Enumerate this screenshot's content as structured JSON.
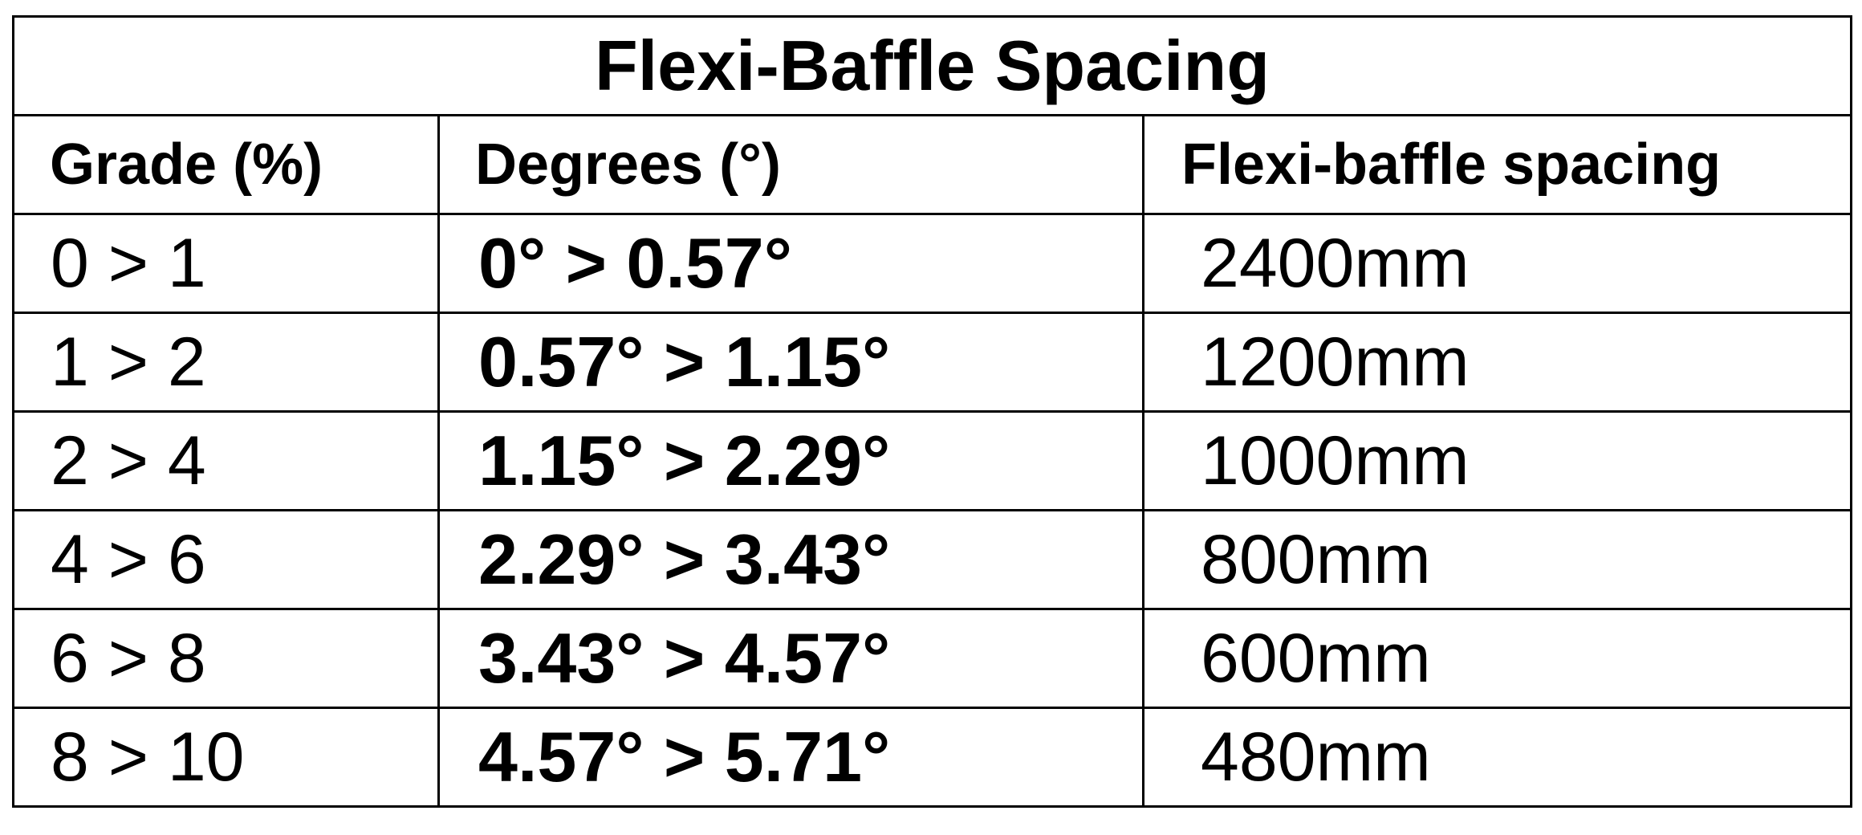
{
  "table": {
    "title": "Flexi-Baffle Spacing",
    "headers": [
      "Grade (%)",
      "Degrees (°)",
      "Flexi-baffle spacing"
    ],
    "rows": [
      [
        "0 > 1",
        "0° > 0.57°",
        "2400mm"
      ],
      [
        "1 > 2",
        "0.57° > 1.15°",
        "1200mm"
      ],
      [
        "2 > 4",
        "1.15° > 2.29°",
        "1000mm"
      ],
      [
        "4 > 6",
        "2.29° > 3.43°",
        "800mm"
      ],
      [
        "6 > 8",
        "3.43° > 4.57°",
        "600mm"
      ],
      [
        "8 > 10",
        "4.57° > 5.71°",
        "480mm"
      ]
    ]
  }
}
